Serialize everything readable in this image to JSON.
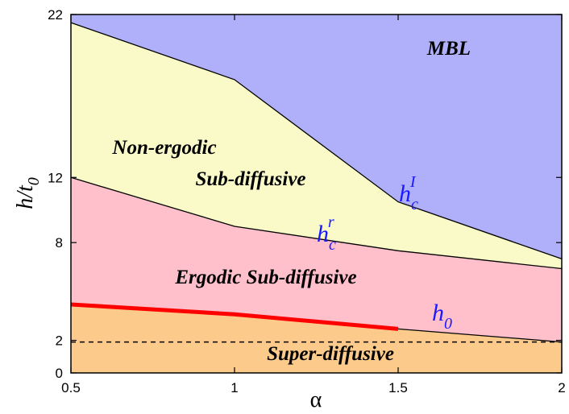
{
  "chart_data": {
    "type": "area",
    "title": "",
    "xlabel": "α",
    "ylabel": "h/t0",
    "xlim": [
      0.5,
      2
    ],
    "ylim": [
      0,
      22
    ],
    "xticks": [
      "0.5",
      "1",
      "1.5",
      "2"
    ],
    "yticks": [
      "0",
      "2",
      "8",
      "12",
      "22"
    ],
    "boundaries": [
      {
        "name": "h_c^I",
        "x": [
          0.5,
          1,
          1.5,
          2
        ],
        "y": [
          21.5,
          18.0,
          10.5,
          7.0
        ]
      },
      {
        "name": "h_c^r",
        "x": [
          0.5,
          1,
          1.5,
          2
        ],
        "y": [
          12.0,
          9.0,
          7.5,
          6.4
        ]
      },
      {
        "name": "h_0",
        "x": [
          0.5,
          1,
          1.5,
          2
        ],
        "y": [
          4.2,
          3.6,
          2.7,
          1.9
        ]
      }
    ],
    "highlight_segment": {
      "x": [
        0.5,
        1,
        1.5
      ],
      "y": [
        4.2,
        3.6,
        2.7
      ],
      "color": "#ff0000"
    },
    "reference_line": {
      "y": 1.9,
      "style": "dashed"
    },
    "regions": [
      {
        "label": "MBL",
        "color": "#b0b0fa"
      },
      {
        "label": "Non-ergodic",
        "color": "#fafac8"
      },
      {
        "label": "Sub-diffusive",
        "color": "#fafac8"
      },
      {
        "label": "Ergodic Sub-diffusive",
        "color": "#ffbfcb"
      },
      {
        "label": "Super-diffusive",
        "color": "#fccb8b"
      }
    ],
    "curve_labels": [
      {
        "base": "h",
        "sub": "c",
        "sup": "I"
      },
      {
        "base": "h",
        "sub": "c",
        "sup": "r"
      },
      {
        "base": "h",
        "sub": "0",
        "sup": ""
      }
    ]
  }
}
